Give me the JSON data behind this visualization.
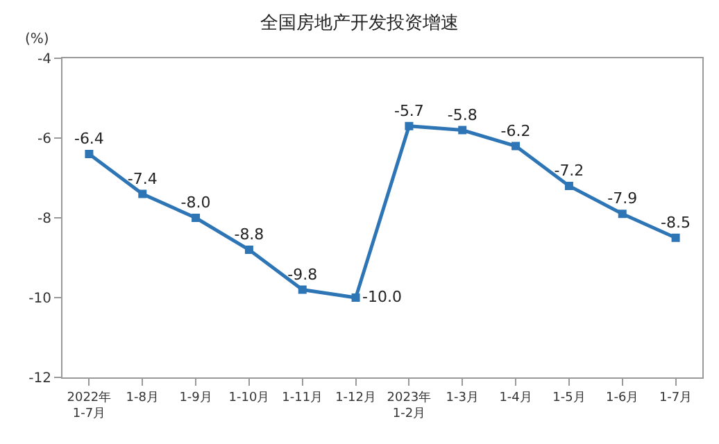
{
  "chart_data": {
    "type": "line",
    "title": "全国房地产开发投资增速",
    "ylabel": "(%)",
    "categories": [
      "2022年\n1-7月",
      "1-8月",
      "1-9月",
      "1-10月",
      "1-11月",
      "1-12月",
      "2023年\n1-2月",
      "1-3月",
      "1-4月",
      "1-5月",
      "1-6月",
      "1-7月"
    ],
    "series": [
      {
        "color": "#2e75b6",
        "values": [
          -6.4,
          -7.4,
          -8.0,
          -8.8,
          -9.8,
          -10.0,
          -5.7,
          -5.8,
          -6.2,
          -7.2,
          -7.9,
          -8.5
        ],
        "value_labels": [
          "-6.4",
          "-7.4",
          "-8.0",
          "-8.8",
          "-9.8",
          "-10.0",
          "-5.7",
          "-5.8",
          "-6.2",
          "-7.2",
          "-7.9",
          "-8.5"
        ]
      }
    ],
    "ylim": [
      -12,
      -4
    ],
    "yticks": [
      -12,
      -10,
      -8,
      -6,
      -4
    ],
    "legend": false,
    "marker": "square",
    "line_style": "solid"
  }
}
